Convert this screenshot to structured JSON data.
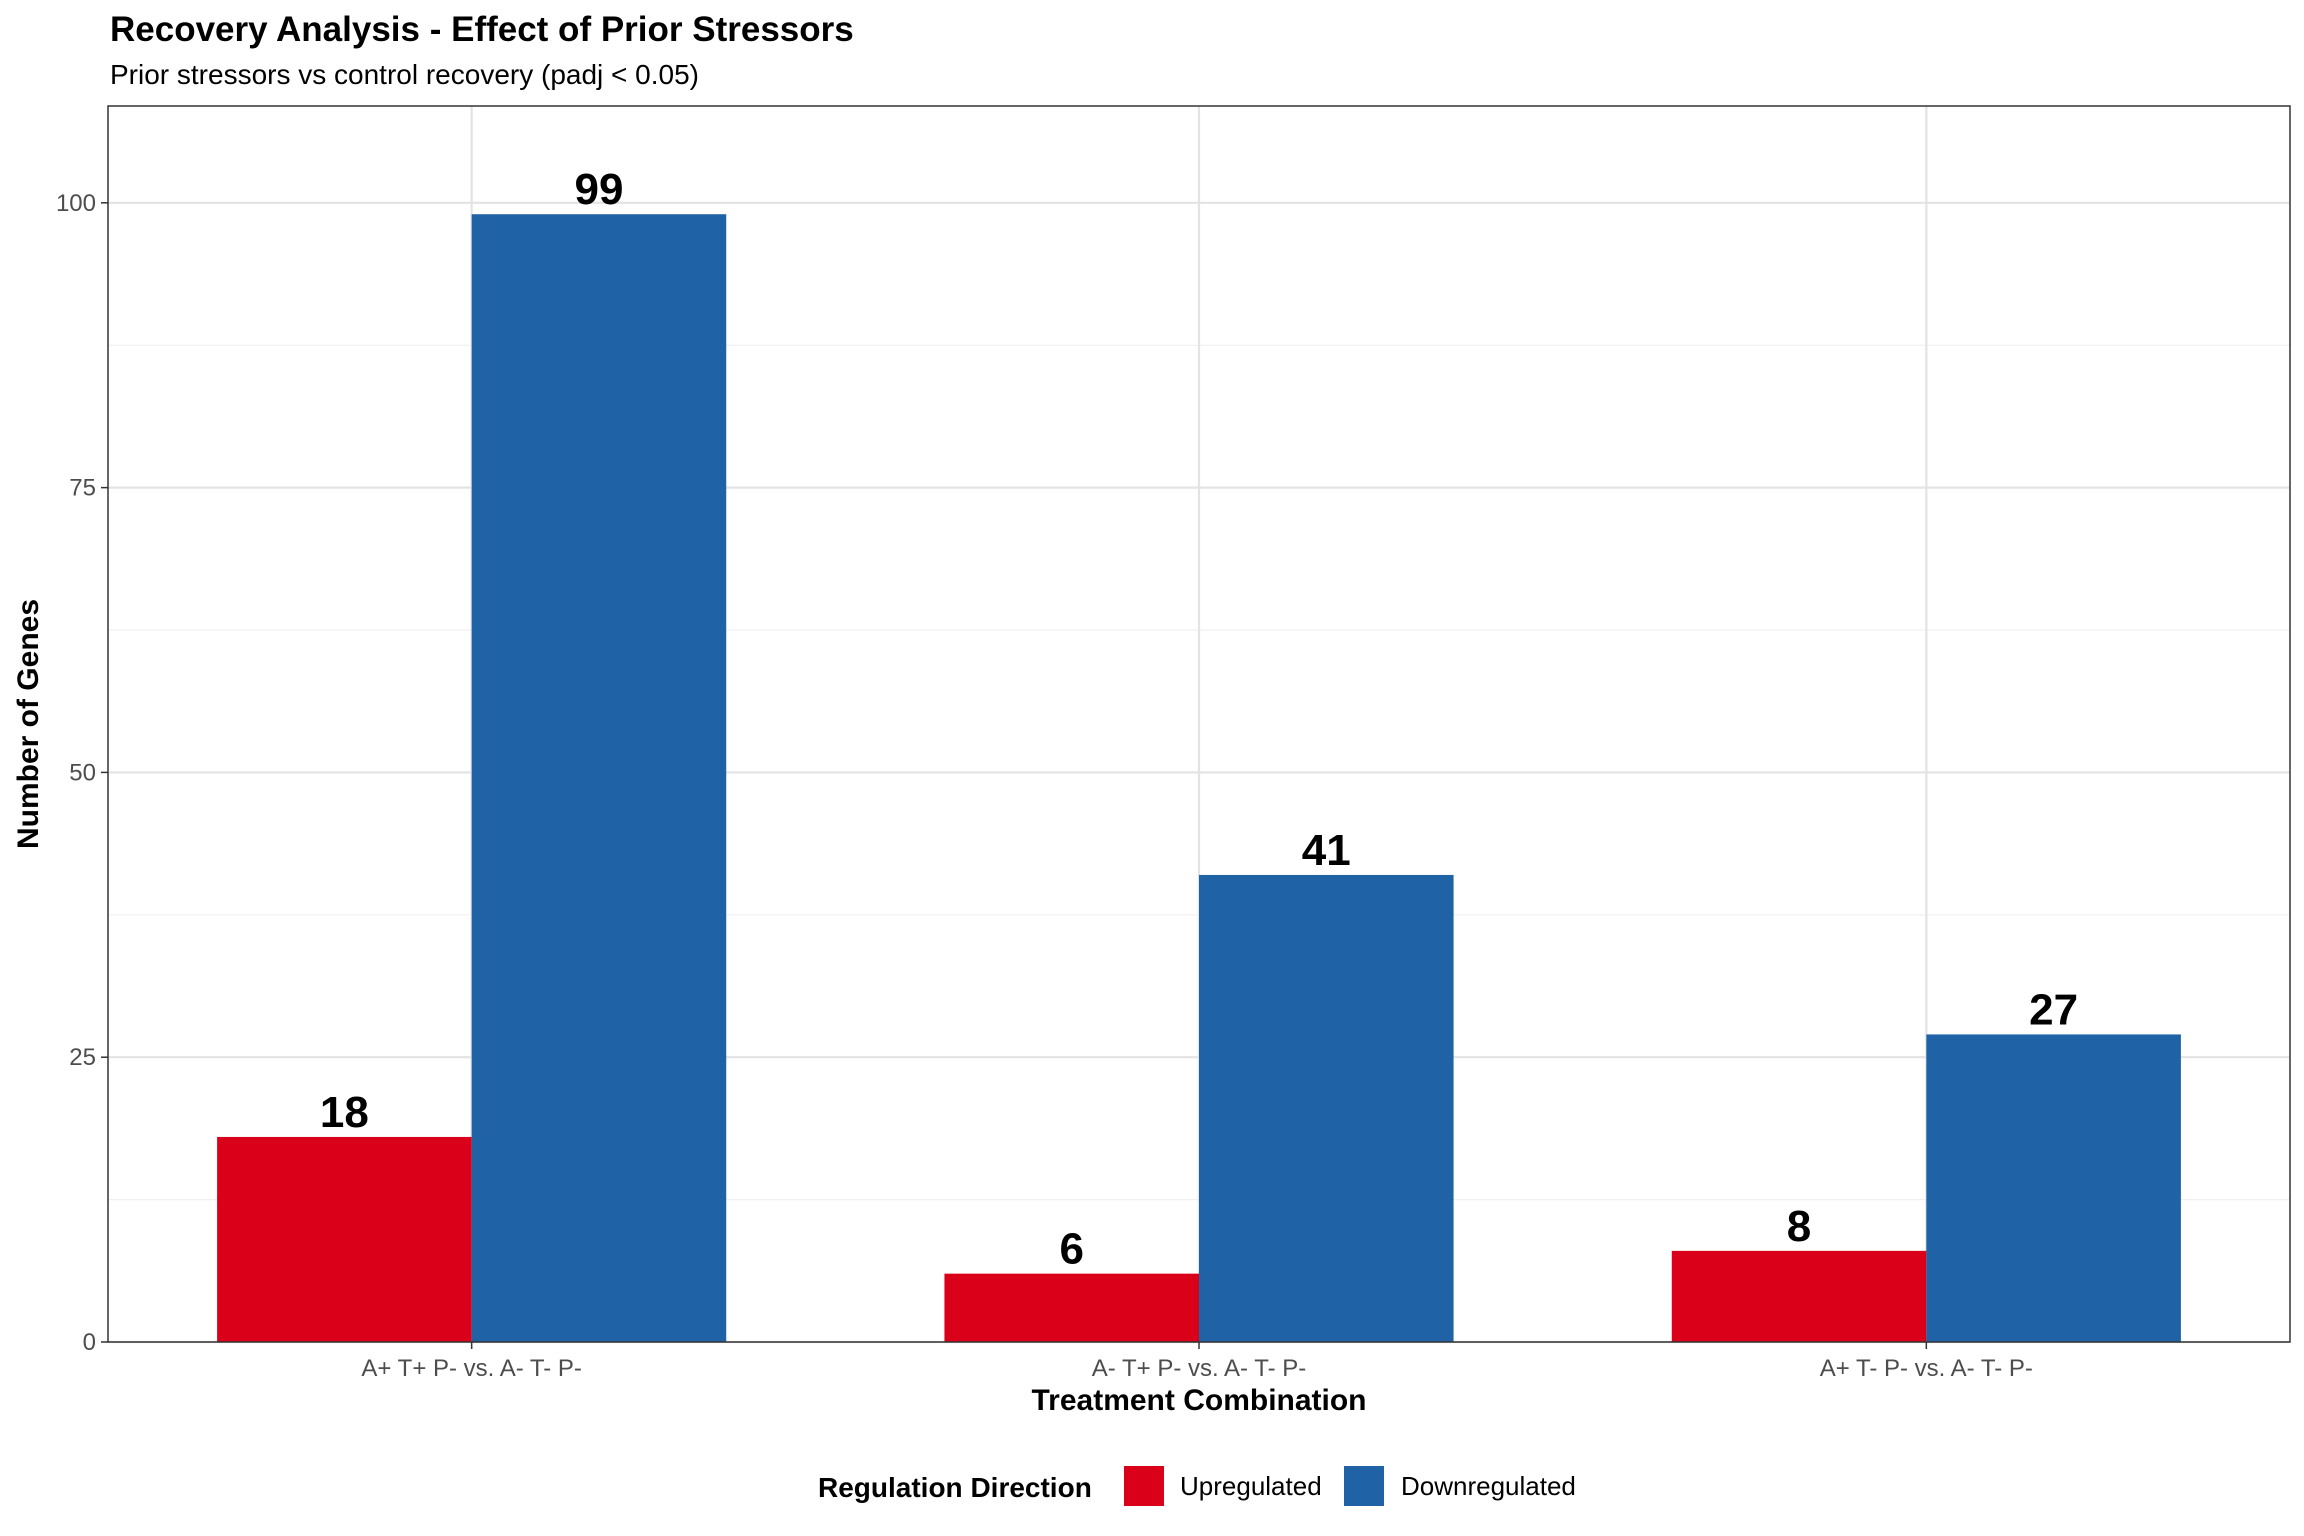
{
  "chart_data": {
    "type": "bar",
    "title": "Recovery Analysis - Effect of Prior Stressors",
    "subtitle": "Prior stressors vs control recovery (padj < 0.05)",
    "xlabel": "Treatment Combination",
    "ylabel": "Number of Genes",
    "categories": [
      "A+ T+ P- vs. A- T- P-",
      "A- T+ P- vs. A- T- P-",
      "A+ T- P- vs. A- T- P-"
    ],
    "series": [
      {
        "name": "Upregulated",
        "color": "#DA0019",
        "values": [
          18,
          6,
          8
        ]
      },
      {
        "name": "Downregulated",
        "color": "#1F63A6",
        "values": [
          99,
          41,
          27
        ]
      }
    ],
    "ylim": [
      0,
      108.5
    ],
    "yticks": [
      0,
      25,
      50,
      75,
      100
    ],
    "grid": true,
    "legend": {
      "title": "Regulation Direction",
      "placement": "bottom"
    }
  }
}
